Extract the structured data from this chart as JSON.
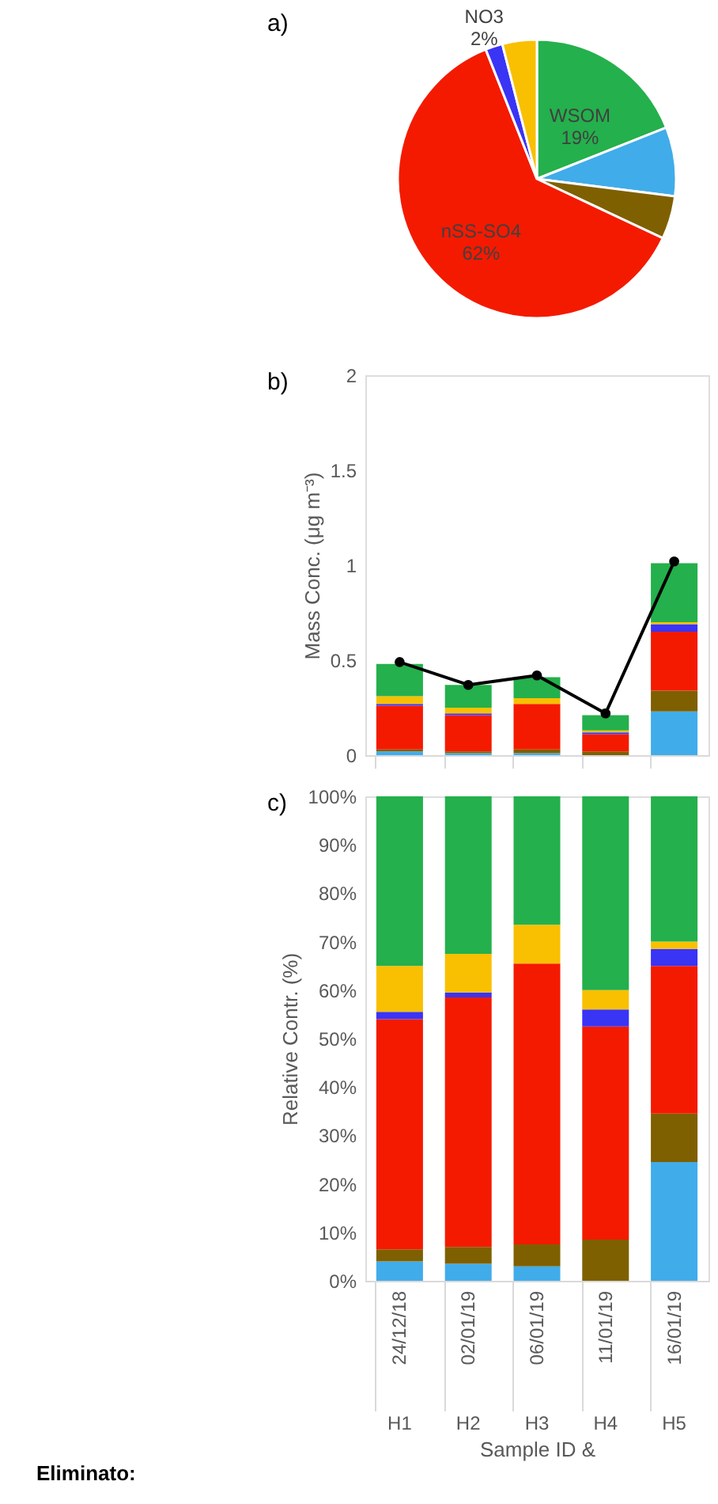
{
  "chart_data": [
    {
      "type": "pie",
      "title": "a)",
      "categories": [
        "WSOM",
        null,
        null,
        "nSS-SO4",
        "NO3",
        null
      ],
      "values": [
        19,
        8,
        5,
        62,
        2,
        4
      ],
      "colors": [
        "#24B04C",
        "#41ACEA",
        "#7F6000",
        "#F41A00",
        "#3A34F5",
        "#F8C000"
      ],
      "value_labels": [
        "19%",
        null,
        null,
        "62%",
        "2%",
        null
      ]
    },
    {
      "type": "bar",
      "title": "b)",
      "ylabel": "Mass Conc. (μg m⁻³)",
      "categories": [
        null,
        null,
        null,
        null,
        null
      ],
      "stacked": true,
      "series": [
        {
          "color": "#41ACEA",
          "values": [
            0.02,
            0.01,
            0.01,
            null,
            0.23
          ]
        },
        {
          "color": "#7F6000",
          "values": [
            0.01,
            0.01,
            0.02,
            0.02,
            0.11
          ]
        },
        {
          "color": "#F41A00",
          "values": [
            0.23,
            0.19,
            0.24,
            0.09,
            0.31
          ]
        },
        {
          "color": "#3A34F5",
          "values": [
            0.01,
            0.01,
            null,
            0.01,
            0.04
          ]
        },
        {
          "color": "#F8C000",
          "values": [
            0.04,
            0.03,
            0.03,
            0.01,
            0.01
          ]
        },
        {
          "color": "#24B04C",
          "values": [
            0.17,
            0.12,
            0.11,
            0.08,
            0.31
          ]
        },
        {
          "type": "line",
          "color": "#000000",
          "values": [
            0.49,
            0.37,
            0.42,
            0.22,
            1.02
          ]
        }
      ],
      "marker": "circle",
      "ylim": [
        0,
        2
      ],
      "yticks": [
        0,
        0.5,
        1,
        1.5,
        2
      ],
      "tick_labels": "y"
    },
    {
      "type": "bar",
      "title": "c)",
      "ylabel": "Relative Contr. (%)",
      "xlabel": "Sample ID &",
      "categories": [
        "24/12/18\nH1",
        "02/01/19\nH2",
        "06/01/19\nH3",
        "11/01/19\nH4",
        "16/01/19\nH5"
      ],
      "stacked": true,
      "series": [
        {
          "color": "#41ACEA",
          "values": [
            4,
            3.5,
            3,
            null,
            24.5
          ]
        },
        {
          "color": "#7F6000",
          "values": [
            2.5,
            3.5,
            4.5,
            8.5,
            10
          ]
        },
        {
          "color": "#F41A00",
          "values": [
            47.5,
            51.5,
            58,
            44,
            30.5
          ]
        },
        {
          "color": "#3A34F5",
          "values": [
            1.5,
            1,
            null,
            3.5,
            3.5
          ]
        },
        {
          "color": "#F8C000",
          "values": [
            9.5,
            8,
            8,
            4,
            1.5
          ]
        },
        {
          "color": "#24B04C",
          "values": [
            35,
            32.5,
            26.5,
            40,
            30
          ]
        }
      ],
      "ylim": [
        0,
        100
      ],
      "yticks": [
        {
          "value": 0,
          "label": "0%"
        },
        {
          "value": 10,
          "label": "10%"
        },
        {
          "value": 20,
          "label": "20%"
        },
        {
          "value": 30,
          "label": "30%"
        },
        {
          "value": 40,
          "label": "40%"
        },
        {
          "value": 50,
          "label": "50%"
        },
        {
          "value": 60,
          "label": "60%"
        },
        {
          "value": 70,
          "label": "70%"
        },
        {
          "value": 80,
          "label": "80%"
        },
        {
          "value": 90,
          "label": "90%"
        },
        {
          "value": 100,
          "label": "100%"
        }
      ],
      "annotations": [
        "Eliminato:"
      ]
    }
  ]
}
